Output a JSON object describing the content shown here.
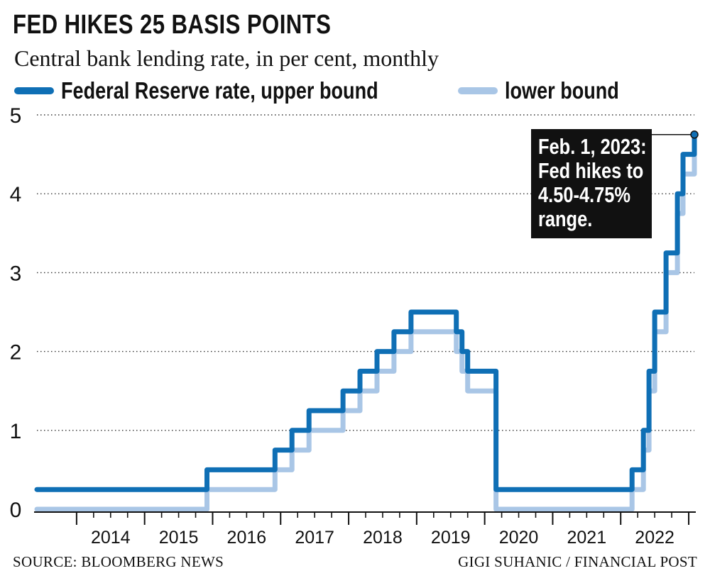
{
  "title": "FED HIKES 25 BASIS POINTS",
  "subtitle": "Central bank lending rate, in per cent, monthly",
  "source": "SOURCE: BLOOMBERG NEWS",
  "credit": "GIGI SUHANIC / FINANCIAL POST",
  "annotation": {
    "lines": [
      "Feb. 1, 2023:",
      "Fed hikes to",
      "4.50-4.75%",
      "range."
    ]
  },
  "colors": {
    "upper": "#0f6fb5",
    "lower": "#a9c6e6",
    "grid": "#333333",
    "annotation_bg": "#111111"
  },
  "chart_data": {
    "type": "line",
    "step": true,
    "title": "FED HIKES 25 BASIS POINTS",
    "subtitle": "Central bank lending rate, in per cent, monthly",
    "xlabel": "",
    "ylabel": "",
    "ylim": [
      0,
      5
    ],
    "yticks": [
      0,
      1,
      2,
      3,
      4,
      5
    ],
    "xlim": [
      "2013-06",
      "2023-02"
    ],
    "xticks": [
      "2014",
      "2015",
      "2016",
      "2017",
      "2018",
      "2019",
      "2020",
      "2021",
      "2022"
    ],
    "grid": "horizontal dotted",
    "legend_position": "top",
    "series": [
      {
        "name": "Federal Reserve rate, upper bound",
        "color": "#0f6fb5",
        "points": [
          [
            "2013-06",
            0.25
          ],
          [
            "2015-12",
            0.25
          ],
          [
            "2015-12",
            0.5
          ],
          [
            "2016-12",
            0.5
          ],
          [
            "2016-12",
            0.75
          ],
          [
            "2017-03",
            0.75
          ],
          [
            "2017-03",
            1.0
          ],
          [
            "2017-06",
            1.0
          ],
          [
            "2017-06",
            1.25
          ],
          [
            "2017-12",
            1.25
          ],
          [
            "2017-12",
            1.5
          ],
          [
            "2018-03",
            1.5
          ],
          [
            "2018-03",
            1.75
          ],
          [
            "2018-06",
            1.75
          ],
          [
            "2018-06",
            2.0
          ],
          [
            "2018-09",
            2.0
          ],
          [
            "2018-09",
            2.25
          ],
          [
            "2018-12",
            2.25
          ],
          [
            "2018-12",
            2.5
          ],
          [
            "2019-08",
            2.5
          ],
          [
            "2019-08",
            2.25
          ],
          [
            "2019-09",
            2.25
          ],
          [
            "2019-09",
            2.0
          ],
          [
            "2019-10",
            2.0
          ],
          [
            "2019-10",
            1.75
          ],
          [
            "2020-03",
            1.75
          ],
          [
            "2020-03",
            0.25
          ],
          [
            "2022-03",
            0.25
          ],
          [
            "2022-03",
            0.5
          ],
          [
            "2022-05",
            0.5
          ],
          [
            "2022-05",
            1.0
          ],
          [
            "2022-06",
            1.0
          ],
          [
            "2022-06",
            1.75
          ],
          [
            "2022-07",
            1.75
          ],
          [
            "2022-07",
            2.5
          ],
          [
            "2022-09",
            2.5
          ],
          [
            "2022-09",
            3.25
          ],
          [
            "2022-11",
            3.25
          ],
          [
            "2022-11",
            4.0
          ],
          [
            "2022-12",
            4.0
          ],
          [
            "2022-12",
            4.5
          ],
          [
            "2023-02",
            4.5
          ],
          [
            "2023-02",
            4.75
          ]
        ]
      },
      {
        "name": "lower bound",
        "color": "#a9c6e6",
        "points": [
          [
            "2013-06",
            0.0
          ],
          [
            "2015-12",
            0.0
          ],
          [
            "2015-12",
            0.25
          ],
          [
            "2016-12",
            0.25
          ],
          [
            "2016-12",
            0.5
          ],
          [
            "2017-03",
            0.5
          ],
          [
            "2017-03",
            0.75
          ],
          [
            "2017-06",
            0.75
          ],
          [
            "2017-06",
            1.0
          ],
          [
            "2017-12",
            1.0
          ],
          [
            "2017-12",
            1.25
          ],
          [
            "2018-03",
            1.25
          ],
          [
            "2018-03",
            1.5
          ],
          [
            "2018-06",
            1.5
          ],
          [
            "2018-06",
            1.75
          ],
          [
            "2018-09",
            1.75
          ],
          [
            "2018-09",
            2.0
          ],
          [
            "2018-12",
            2.0
          ],
          [
            "2018-12",
            2.25
          ],
          [
            "2019-08",
            2.25
          ],
          [
            "2019-08",
            2.0
          ],
          [
            "2019-09",
            2.0
          ],
          [
            "2019-09",
            1.75
          ],
          [
            "2019-10",
            1.75
          ],
          [
            "2019-10",
            1.5
          ],
          [
            "2020-03",
            1.5
          ],
          [
            "2020-03",
            0.0
          ],
          [
            "2022-03",
            0.0
          ],
          [
            "2022-03",
            0.25
          ],
          [
            "2022-05",
            0.25
          ],
          [
            "2022-05",
            0.75
          ],
          [
            "2022-06",
            0.75
          ],
          [
            "2022-06",
            1.5
          ],
          [
            "2022-07",
            1.5
          ],
          [
            "2022-07",
            2.25
          ],
          [
            "2022-09",
            2.25
          ],
          [
            "2022-09",
            3.0
          ],
          [
            "2022-11",
            3.0
          ],
          [
            "2022-11",
            3.75
          ],
          [
            "2022-12",
            3.75
          ],
          [
            "2022-12",
            4.25
          ],
          [
            "2023-02",
            4.25
          ],
          [
            "2023-02",
            4.5
          ]
        ]
      }
    ],
    "annotation": {
      "date": "2023-02",
      "value": 4.75,
      "text": "Feb. 1, 2023: Fed hikes to 4.50-4.75% range."
    }
  }
}
